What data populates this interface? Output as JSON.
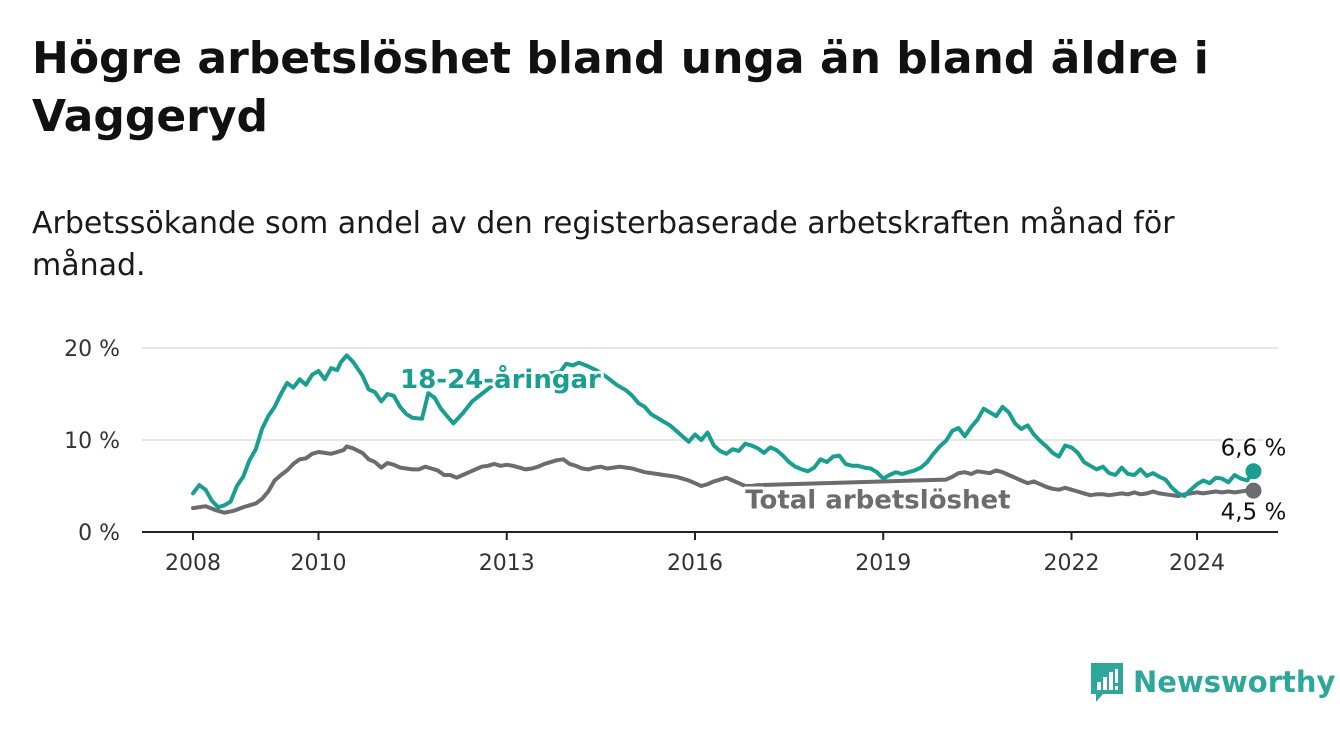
{
  "title": "Högre arbetslöshet bland unga än bland äldre i Vaggeryd",
  "subtitle": "Arbetssökande som andel av den registerbaserade arbetskraften månad för månad.",
  "brand": "Newsworthy",
  "colors": {
    "youth": "#1a9e8f",
    "total": "#6b6b70",
    "grid": "#dddddd",
    "axis": "#222222",
    "brand": "#2ea79a"
  },
  "chart_data": {
    "type": "line",
    "ylim": [
      0,
      20
    ],
    "xlim": [
      2008,
      2025.2
    ],
    "y_ticks": [
      {
        "value": 0,
        "label": "0 %"
      },
      {
        "value": 10,
        "label": "10 %"
      },
      {
        "value": 20,
        "label": "20 %"
      }
    ],
    "x_ticks": [
      {
        "value": 2008,
        "label": "2008"
      },
      {
        "value": 2010,
        "label": "2010"
      },
      {
        "value": 2013,
        "label": "2013"
      },
      {
        "value": 2016,
        "label": "2016"
      },
      {
        "value": 2019,
        "label": "2019"
      },
      {
        "value": 2022,
        "label": "2022"
      },
      {
        "value": 2024,
        "label": "2024"
      }
    ],
    "series": [
      {
        "name": "18-24-åringar",
        "color": "#1a9e8f",
        "end_label": "6,6 %",
        "points": [
          [
            2008.0,
            4.2
          ],
          [
            2008.1,
            5.1
          ],
          [
            2008.2,
            4.6
          ],
          [
            2008.3,
            3.4
          ],
          [
            2008.4,
            2.7
          ],
          [
            2008.5,
            2.9
          ],
          [
            2008.6,
            3.3
          ],
          [
            2008.7,
            5.0
          ],
          [
            2008.8,
            6.0
          ],
          [
            2008.9,
            7.8
          ],
          [
            2009.0,
            9.0
          ],
          [
            2009.1,
            11.2
          ],
          [
            2009.2,
            12.6
          ],
          [
            2009.3,
            13.6
          ],
          [
            2009.4,
            15.0
          ],
          [
            2009.5,
            16.2
          ],
          [
            2009.6,
            15.7
          ],
          [
            2009.7,
            16.6
          ],
          [
            2009.8,
            16.0
          ],
          [
            2009.9,
            17.1
          ],
          [
            2010.0,
            17.5
          ],
          [
            2010.1,
            16.6
          ],
          [
            2010.2,
            17.8
          ],
          [
            2010.3,
            17.6
          ],
          [
            2010.35,
            18.4
          ],
          [
            2010.45,
            19.2
          ],
          [
            2010.55,
            18.5
          ],
          [
            2010.7,
            17.0
          ],
          [
            2010.8,
            15.5
          ],
          [
            2010.9,
            15.2
          ],
          [
            2011.0,
            14.2
          ],
          [
            2011.1,
            15.0
          ],
          [
            2011.2,
            14.8
          ],
          [
            2011.3,
            13.6
          ],
          [
            2011.4,
            12.8
          ],
          [
            2011.5,
            12.4
          ],
          [
            2011.65,
            12.3
          ],
          [
            2011.75,
            15.1
          ],
          [
            2011.85,
            14.6
          ],
          [
            2011.95,
            13.4
          ],
          [
            2012.05,
            12.6
          ],
          [
            2012.15,
            11.8
          ],
          [
            2012.3,
            12.9
          ],
          [
            2012.45,
            14.2
          ],
          [
            2012.6,
            15.0
          ],
          [
            2012.75,
            15.8
          ],
          [
            2012.85,
            16.4
          ],
          [
            2013.85,
            17.4
          ],
          [
            2013.95,
            18.3
          ],
          [
            2014.05,
            18.1
          ],
          [
            2014.15,
            18.4
          ],
          [
            2014.3,
            18.0
          ],
          [
            2014.45,
            17.5
          ],
          [
            2014.6,
            16.8
          ],
          [
            2014.75,
            16.0
          ],
          [
            2014.9,
            15.4
          ],
          [
            2015.0,
            14.8
          ],
          [
            2015.1,
            14.0
          ],
          [
            2015.2,
            13.6
          ],
          [
            2015.3,
            12.8
          ],
          [
            2015.4,
            12.4
          ],
          [
            2015.5,
            12.0
          ],
          [
            2015.6,
            11.6
          ],
          [
            2015.7,
            11.0
          ],
          [
            2015.8,
            10.4
          ],
          [
            2015.9,
            9.8
          ],
          [
            2016.0,
            10.6
          ],
          [
            2016.1,
            10.0
          ],
          [
            2016.2,
            10.8
          ],
          [
            2016.3,
            9.4
          ],
          [
            2016.4,
            8.8
          ],
          [
            2016.5,
            8.5
          ],
          [
            2016.6,
            9.0
          ],
          [
            2016.7,
            8.8
          ],
          [
            2016.8,
            9.6
          ],
          [
            2016.9,
            9.4
          ],
          [
            2017.0,
            9.1
          ],
          [
            2017.1,
            8.6
          ],
          [
            2017.2,
            9.2
          ],
          [
            2017.3,
            8.9
          ],
          [
            2017.4,
            8.3
          ],
          [
            2017.5,
            7.6
          ],
          [
            2017.6,
            7.1
          ],
          [
            2017.7,
            6.8
          ],
          [
            2017.8,
            6.6
          ],
          [
            2017.9,
            7.0
          ],
          [
            2018.0,
            7.9
          ],
          [
            2018.1,
            7.6
          ],
          [
            2018.2,
            8.2
          ],
          [
            2018.3,
            8.3
          ],
          [
            2018.4,
            7.4
          ],
          [
            2018.5,
            7.2
          ],
          [
            2018.6,
            7.2
          ],
          [
            2018.7,
            7.0
          ],
          [
            2018.8,
            6.9
          ],
          [
            2018.9,
            6.5
          ],
          [
            2019.0,
            5.8
          ],
          [
            2019.1,
            6.2
          ],
          [
            2019.2,
            6.5
          ],
          [
            2019.3,
            6.3
          ],
          [
            2019.4,
            6.5
          ],
          [
            2019.5,
            6.7
          ],
          [
            2019.6,
            7.0
          ],
          [
            2019.7,
            7.6
          ],
          [
            2019.8,
            8.5
          ],
          [
            2019.9,
            9.3
          ],
          [
            2020.0,
            9.9
          ],
          [
            2020.1,
            11.0
          ],
          [
            2020.2,
            11.3
          ],
          [
            2020.3,
            10.4
          ],
          [
            2020.4,
            11.4
          ],
          [
            2020.5,
            12.2
          ],
          [
            2020.6,
            13.4
          ],
          [
            2020.7,
            13.0
          ],
          [
            2020.8,
            12.6
          ],
          [
            2020.9,
            13.6
          ],
          [
            2021.0,
            13.0
          ],
          [
            2021.1,
            11.8
          ],
          [
            2021.2,
            11.2
          ],
          [
            2021.3,
            11.6
          ],
          [
            2021.4,
            10.6
          ],
          [
            2021.5,
            9.9
          ],
          [
            2021.6,
            9.3
          ],
          [
            2021.7,
            8.6
          ],
          [
            2021.8,
            8.2
          ],
          [
            2021.9,
            9.4
          ],
          [
            2022.0,
            9.2
          ],
          [
            2022.1,
            8.6
          ],
          [
            2022.2,
            7.6
          ],
          [
            2022.3,
            7.2
          ],
          [
            2022.4,
            6.8
          ],
          [
            2022.5,
            7.1
          ],
          [
            2022.6,
            6.4
          ],
          [
            2022.7,
            6.2
          ],
          [
            2022.8,
            7.0
          ],
          [
            2022.9,
            6.3
          ],
          [
            2023.0,
            6.2
          ],
          [
            2023.1,
            6.8
          ],
          [
            2023.2,
            6.1
          ],
          [
            2023.3,
            6.4
          ],
          [
            2023.4,
            6.0
          ],
          [
            2023.5,
            5.7
          ],
          [
            2023.6,
            4.8
          ],
          [
            2023.7,
            4.2
          ],
          [
            2023.8,
            3.9
          ],
          [
            2023.9,
            4.6
          ],
          [
            2024.0,
            5.2
          ],
          [
            2024.1,
            5.6
          ],
          [
            2024.2,
            5.3
          ],
          [
            2024.3,
            5.9
          ],
          [
            2024.4,
            5.8
          ],
          [
            2024.5,
            5.4
          ],
          [
            2024.6,
            6.2
          ],
          [
            2024.7,
            5.8
          ],
          [
            2024.8,
            5.6
          ],
          [
            2024.9,
            6.6
          ]
        ]
      },
      {
        "name": "Total arbetslöshet",
        "color": "#6b6b70",
        "end_label": "4,5 %",
        "points": [
          [
            2008.0,
            2.6
          ],
          [
            2008.2,
            2.8
          ],
          [
            2008.35,
            2.4
          ],
          [
            2008.5,
            2.1
          ],
          [
            2008.65,
            2.3
          ],
          [
            2008.8,
            2.7
          ],
          [
            2009.0,
            3.1
          ],
          [
            2009.1,
            3.6
          ],
          [
            2009.2,
            4.4
          ],
          [
            2009.3,
            5.6
          ],
          [
            2009.4,
            6.2
          ],
          [
            2009.5,
            6.7
          ],
          [
            2009.6,
            7.4
          ],
          [
            2009.7,
            7.9
          ],
          [
            2009.8,
            8.0
          ],
          [
            2009.9,
            8.5
          ],
          [
            2010.0,
            8.7
          ],
          [
            2010.1,
            8.6
          ],
          [
            2010.2,
            8.5
          ],
          [
            2010.3,
            8.7
          ],
          [
            2010.4,
            8.9
          ],
          [
            2010.45,
            9.3
          ],
          [
            2010.55,
            9.1
          ],
          [
            2010.7,
            8.6
          ],
          [
            2010.8,
            7.9
          ],
          [
            2010.9,
            7.6
          ],
          [
            2011.0,
            7.0
          ],
          [
            2011.1,
            7.5
          ],
          [
            2011.2,
            7.3
          ],
          [
            2011.3,
            7.0
          ],
          [
            2011.4,
            6.9
          ],
          [
            2011.5,
            6.8
          ],
          [
            2011.6,
            6.8
          ],
          [
            2011.7,
            7.1
          ],
          [
            2011.8,
            6.9
          ],
          [
            2011.9,
            6.7
          ],
          [
            2012.0,
            6.2
          ],
          [
            2012.1,
            6.2
          ],
          [
            2012.2,
            5.9
          ],
          [
            2012.3,
            6.2
          ],
          [
            2012.4,
            6.5
          ],
          [
            2012.5,
            6.8
          ],
          [
            2012.6,
            7.1
          ],
          [
            2012.7,
            7.2
          ],
          [
            2012.8,
            7.4
          ],
          [
            2012.9,
            7.2
          ],
          [
            2013.0,
            7.3
          ],
          [
            2013.1,
            7.2
          ],
          [
            2013.2,
            7.0
          ],
          [
            2013.3,
            6.8
          ],
          [
            2013.4,
            6.9
          ],
          [
            2013.5,
            7.1
          ],
          [
            2013.6,
            7.4
          ],
          [
            2013.7,
            7.6
          ],
          [
            2013.8,
            7.8
          ],
          [
            2013.9,
            7.9
          ],
          [
            2014.0,
            7.4
          ],
          [
            2014.1,
            7.2
          ],
          [
            2014.2,
            6.9
          ],
          [
            2014.3,
            6.8
          ],
          [
            2014.4,
            7.0
          ],
          [
            2014.5,
            7.1
          ],
          [
            2014.6,
            6.9
          ],
          [
            2014.7,
            7.0
          ],
          [
            2014.8,
            7.1
          ],
          [
            2014.9,
            7.0
          ],
          [
            2015.0,
            6.9
          ],
          [
            2015.1,
            6.7
          ],
          [
            2015.2,
            6.5
          ],
          [
            2015.3,
            6.4
          ],
          [
            2015.4,
            6.3
          ],
          [
            2015.5,
            6.2
          ],
          [
            2015.6,
            6.1
          ],
          [
            2015.7,
            6.0
          ],
          [
            2015.8,
            5.8
          ],
          [
            2015.9,
            5.6
          ],
          [
            2016.0,
            5.3
          ],
          [
            2016.1,
            5.0
          ],
          [
            2016.2,
            5.2
          ],
          [
            2016.3,
            5.5
          ],
          [
            2016.4,
            5.7
          ],
          [
            2016.5,
            5.9
          ],
          [
            2016.6,
            5.6
          ],
          [
            2016.7,
            5.3
          ],
          [
            2016.8,
            5.0
          ],
          [
            2016.9,
            5.0
          ],
          [
            2017.0,
            5.1
          ],
          [
            2020.0,
            5.7
          ],
          [
            2020.1,
            6.0
          ],
          [
            2020.2,
            6.4
          ],
          [
            2020.3,
            6.5
          ],
          [
            2020.4,
            6.3
          ],
          [
            2020.5,
            6.6
          ],
          [
            2020.6,
            6.5
          ],
          [
            2020.7,
            6.4
          ],
          [
            2020.8,
            6.7
          ],
          [
            2020.9,
            6.5
          ],
          [
            2021.0,
            6.2
          ],
          [
            2021.1,
            5.9
          ],
          [
            2021.2,
            5.6
          ],
          [
            2021.3,
            5.3
          ],
          [
            2021.4,
            5.5
          ],
          [
            2021.5,
            5.2
          ],
          [
            2021.6,
            4.9
          ],
          [
            2021.7,
            4.7
          ],
          [
            2021.8,
            4.6
          ],
          [
            2021.9,
            4.8
          ],
          [
            2022.0,
            4.6
          ],
          [
            2022.1,
            4.4
          ],
          [
            2022.2,
            4.2
          ],
          [
            2022.3,
            4.0
          ],
          [
            2022.4,
            4.1
          ],
          [
            2022.5,
            4.1
          ],
          [
            2022.6,
            4.0
          ],
          [
            2022.7,
            4.1
          ],
          [
            2022.8,
            4.2
          ],
          [
            2022.9,
            4.1
          ],
          [
            2023.0,
            4.3
          ],
          [
            2023.1,
            4.1
          ],
          [
            2023.2,
            4.2
          ],
          [
            2023.3,
            4.4
          ],
          [
            2023.4,
            4.2
          ],
          [
            2023.5,
            4.1
          ],
          [
            2023.6,
            4.0
          ],
          [
            2023.7,
            3.9
          ],
          [
            2023.8,
            4.1
          ],
          [
            2023.9,
            4.2
          ],
          [
            2024.0,
            4.3
          ],
          [
            2024.1,
            4.2
          ],
          [
            2024.2,
            4.3
          ],
          [
            2024.3,
            4.4
          ],
          [
            2024.4,
            4.3
          ],
          [
            2024.5,
            4.4
          ],
          [
            2024.6,
            4.3
          ],
          [
            2024.7,
            4.4
          ],
          [
            2024.8,
            4.5
          ],
          [
            2024.9,
            4.5
          ]
        ]
      }
    ],
    "annotations": [
      {
        "series": 0,
        "text": "18-24-åringar",
        "position": "above",
        "x": 2012.9,
        "y": 16.3
      },
      {
        "series": 1,
        "text": "Total arbetslöshet",
        "position": "below",
        "x": 2016.8,
        "y": 4.1
      }
    ]
  }
}
